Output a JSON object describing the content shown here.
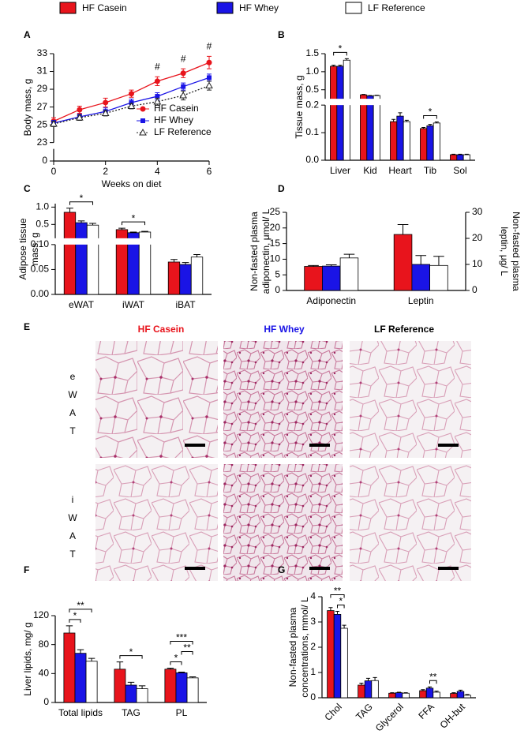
{
  "legend": {
    "items": [
      {
        "name": "HF Casein",
        "color": "#e8141c"
      },
      {
        "name": "HF Whey",
        "color": "#1a14e6"
      },
      {
        "name": "LF Reference",
        "color": "#ffffff"
      }
    ]
  },
  "chart_data": [
    {
      "type": "line",
      "panel": "A",
      "xlabel": "Weeks on diet",
      "ylabel": [
        "Body mass, g"
      ],
      "x": [
        0,
        1,
        2,
        3,
        4,
        5,
        6
      ],
      "xlim": [
        0,
        6
      ],
      "xticks": [
        0,
        2,
        4,
        6
      ],
      "y_segments": [
        {
          "ylim": [
            0,
            1
          ],
          "yticks": [
            0
          ]
        },
        {
          "ylim": [
            23,
            33
          ],
          "yticks": [
            23,
            25,
            27,
            29,
            31,
            33
          ]
        }
      ],
      "legend": "lower right",
      "series": [
        {
          "name": "HF Casein",
          "color": "#e8141c",
          "marker": "circle",
          "dash": false,
          "values": [
            25.4,
            26.7,
            27.5,
            28.5,
            29.9,
            30.8,
            32.0
          ],
          "errors": [
            0.4,
            0.4,
            0.5,
            0.4,
            0.5,
            0.5,
            0.7
          ]
        },
        {
          "name": "HF Whey",
          "color": "#1a14e6",
          "marker": "square",
          "dash": false,
          "values": [
            25.2,
            25.9,
            26.5,
            27.5,
            28.2,
            29.3,
            30.3
          ],
          "errors": [
            0.3,
            0.3,
            0.4,
            0.4,
            0.4,
            0.4,
            0.4
          ]
        },
        {
          "name": "LF Reference",
          "color": "#222222",
          "marker": "triangle",
          "dash": true,
          "values": [
            25.1,
            25.8,
            26.3,
            27.1,
            27.6,
            28.3,
            29.4
          ],
          "errors": [
            0.3,
            0.3,
            0.3,
            0.3,
            0.4,
            0.5,
            0.5
          ]
        }
      ],
      "annotations": [
        {
          "text": "#",
          "x": 4
        },
        {
          "text": "#",
          "x": 5
        },
        {
          "text": "#",
          "x": 6
        }
      ]
    },
    {
      "type": "bar",
      "panel": "B",
      "ylabel": [
        "Tissue mass, g"
      ],
      "categories": [
        "Liver",
        "Kid",
        "Heart",
        "Tib",
        "Sol"
      ],
      "y_segments": [
        {
          "ylim": [
            0,
            0.2
          ],
          "yticks": [
            {
              "value": 0,
              "label": "0.0"
            },
            0.1,
            0.2
          ]
        },
        {
          "ylim": [
            0.25,
            1.5
          ],
          "yticks": [
            0.5,
            {
              "value": 1,
              "label": "1.0"
            },
            1.5
          ]
        }
      ],
      "series": [
        {
          "color": "#e8141c",
          "values": [
            1.15,
            0.36,
            0.14,
            0.115,
            0.02
          ],
          "errors": [
            0.03,
            0.01,
            0.008,
            0.004,
            0.002
          ]
        },
        {
          "color": "#1a14e6",
          "values": [
            1.15,
            0.33,
            0.16,
            0.125,
            0.02
          ],
          "errors": [
            0.03,
            0.01,
            0.012,
            0.005,
            0.002
          ]
        },
        {
          "color": "#ffffff",
          "values": [
            1.32,
            0.34,
            0.14,
            0.135,
            0.02
          ],
          "errors": [
            0.04,
            0.01,
            0.005,
            0.004,
            0.002
          ]
        }
      ],
      "significance": [
        {
          "category": 0,
          "from": 0,
          "to": 2,
          "label": "*"
        },
        {
          "category": 3,
          "from": 0,
          "to": 2,
          "label": "*"
        }
      ]
    },
    {
      "type": "bar",
      "panel": "C",
      "ylabel": [
        "Adipose tissue",
        "mass, g"
      ],
      "categories": [
        "eWAT",
        "iWAT",
        "iBAT"
      ],
      "y_segments": [
        {
          "ylim": [
            0,
            0.1
          ],
          "yticks": [
            {
              "value": 0,
              "label": "0.00"
            },
            0.05,
            {
              "value": 0.1,
              "label": "0.10"
            }
          ]
        },
        {
          "ylim": [
            0.1,
            1.1
          ],
          "yticks": [
            0.5,
            {
              "value": 1,
              "label": "1.0"
            }
          ]
        }
      ],
      "series": [
        {
          "color": "#e8141c",
          "values": [
            0.85,
            0.35,
            0.065
          ],
          "errors": [
            0.12,
            0.04,
            0.005
          ]
        },
        {
          "color": "#1a14e6",
          "values": [
            0.55,
            0.26,
            0.06
          ],
          "errors": [
            0.05,
            0.02,
            0.004
          ]
        },
        {
          "color": "#ffffff",
          "values": [
            0.48,
            0.28,
            0.075
          ],
          "errors": [
            0.05,
            0.02,
            0.005
          ]
        }
      ],
      "significance": [
        {
          "category": 0,
          "from": 0,
          "to": 2,
          "label": "*"
        },
        {
          "category": 1,
          "from": 0,
          "to": 2,
          "label": "*"
        }
      ]
    },
    {
      "type": "bar",
      "panel": "D",
      "ylabel": [
        "Non-fasted plasma",
        "adiponectin, μmol/ L"
      ],
      "y2label": [
        "Non-fasted plasma",
        "leptin, μg/ L"
      ],
      "categories": [
        "Adiponectin",
        "Leptin"
      ],
      "category_axis": [
        "y",
        "y2"
      ],
      "ylim": [
        0,
        25
      ],
      "yticks": [
        0,
        5,
        10,
        15,
        20,
        25
      ],
      "y2lim": [
        0,
        30
      ],
      "y2ticks": [
        0,
        10,
        20,
        30
      ],
      "series": [
        {
          "color": "#e8141c",
          "values": [
            7.7,
            21.5
          ],
          "errors": [
            0.3,
            3.8
          ]
        },
        {
          "color": "#1a14e6",
          "values": [
            7.8,
            10.0
          ],
          "errors": [
            0.4,
            3.4
          ]
        },
        {
          "color": "#ffffff",
          "values": [
            10.4,
            9.6
          ],
          "errors": [
            1.2,
            3.5
          ]
        }
      ]
    },
    {
      "type": "bar",
      "panel": "F",
      "ylabel": [
        "Liver lipids, mg/ g"
      ],
      "categories": [
        "Total lipids",
        "TAG",
        "PL"
      ],
      "ylim": [
        0,
        120
      ],
      "yticks": [
        0,
        40,
        80,
        120
      ],
      "series": [
        {
          "color": "#e8141c",
          "values": [
            96,
            46,
            46
          ],
          "errors": [
            10,
            10,
            1.5
          ]
        },
        {
          "color": "#1a14e6",
          "values": [
            68,
            24,
            41
          ],
          "errors": [
            5,
            4,
            1
          ]
        },
        {
          "color": "#ffffff",
          "values": [
            57,
            19,
            34
          ],
          "errors": [
            4,
            4,
            1.5
          ]
        }
      ],
      "significance": [
        {
          "category": 0,
          "from": 0,
          "to": 1,
          "label": "*"
        },
        {
          "category": 0,
          "from": 0,
          "to": 2,
          "label": "**"
        },
        {
          "category": 1,
          "from": 0,
          "to": 2,
          "label": "*"
        },
        {
          "category": 2,
          "from": 0,
          "to": 1,
          "label": "*"
        },
        {
          "category": 2,
          "from": 1,
          "to": 2,
          "label": "**"
        },
        {
          "category": 2,
          "from": 0,
          "to": 2,
          "label": "***"
        }
      ]
    },
    {
      "type": "bar",
      "panel": "G",
      "ylabel": [
        "Non-fasted plasma",
        "concentrations, mmol/ L"
      ],
      "categories": [
        "Chol",
        "TAG",
        "Glycerol",
        "FFA",
        "OH-but"
      ],
      "ylim": [
        0,
        4
      ],
      "yticks": [
        0,
        1,
        2,
        3,
        4
      ],
      "series": [
        {
          "color": "#e8141c",
          "values": [
            3.45,
            0.5,
            0.18,
            0.28,
            0.17
          ],
          "errors": [
            0.12,
            0.08,
            0.02,
            0.04,
            0.03
          ]
        },
        {
          "color": "#1a14e6",
          "values": [
            3.3,
            0.67,
            0.2,
            0.38,
            0.25
          ],
          "errors": [
            0.12,
            0.1,
            0.02,
            0.05,
            0.05
          ]
        },
        {
          "color": "#ffffff",
          "values": [
            2.75,
            0.68,
            0.18,
            0.22,
            0.1
          ],
          "errors": [
            0.12,
            0.12,
            0.02,
            0.04,
            0.03
          ]
        }
      ],
      "significance": [
        {
          "category": 0,
          "from": 1,
          "to": 2,
          "label": "*"
        },
        {
          "category": 0,
          "from": 0,
          "to": 2,
          "label": "**"
        },
        {
          "category": 3,
          "from": 1,
          "to": 2,
          "label": "**"
        }
      ]
    }
  ],
  "panel_e": {
    "panel": "E",
    "columns": [
      "HF Casein",
      "HF Whey",
      "LF Reference"
    ],
    "rows": [
      [
        "e",
        "W",
        "A",
        "T"
      ],
      [
        "i",
        "W",
        "A",
        "T"
      ]
    ]
  }
}
